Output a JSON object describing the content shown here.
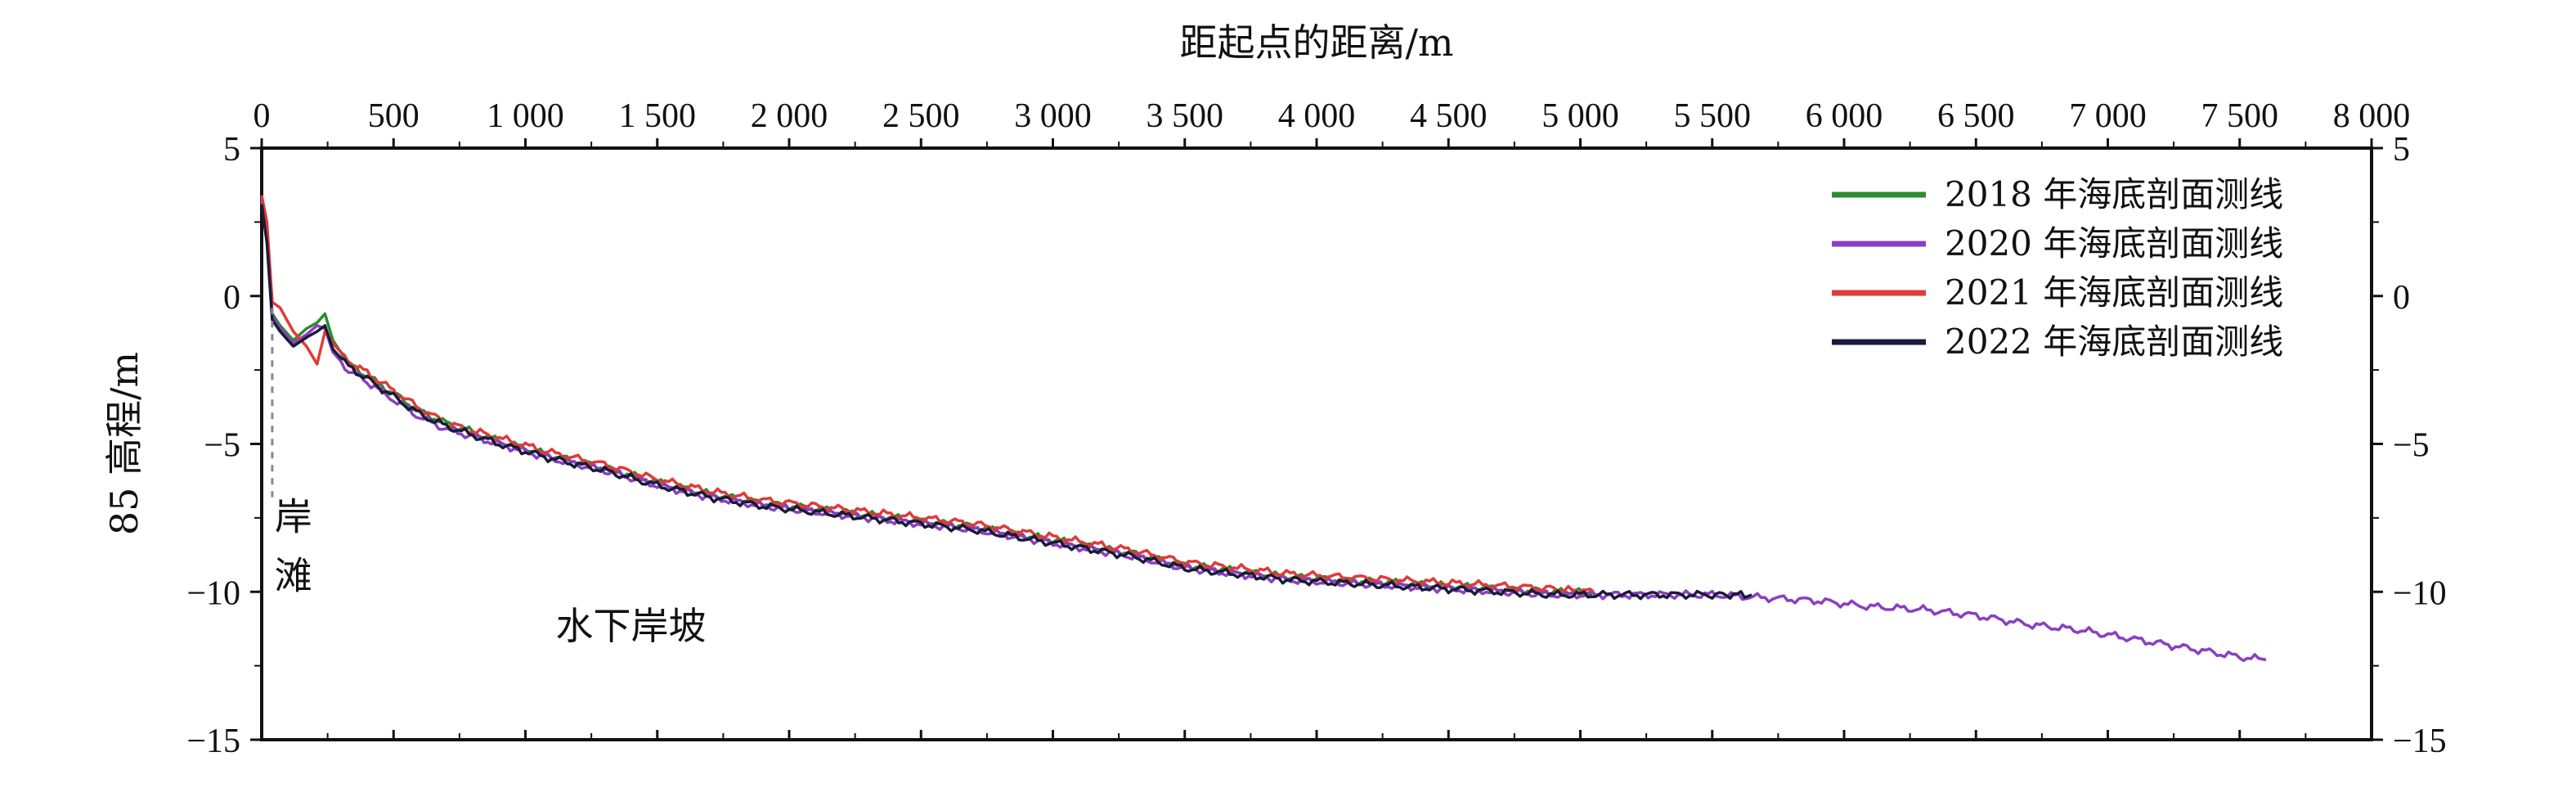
{
  "chart_data": {
    "type": "line",
    "xlabel": "距起点的距离/m",
    "ylabel": "85 高程/m",
    "xlim": [
      0,
      8000
    ],
    "ylim": [
      -15,
      5
    ],
    "x_ticks": [
      0,
      500,
      1000,
      1500,
      2000,
      2500,
      3000,
      3500,
      4000,
      4500,
      5000,
      5500,
      6000,
      6500,
      7000,
      7500,
      8000
    ],
    "x_tick_labels": [
      "0",
      "500",
      "1 000",
      "1 500",
      "2 000",
      "2 500",
      "3 000",
      "3 500",
      "4 000",
      "4 500",
      "5 000",
      "5 500",
      "6 000",
      "6 500",
      "7 000",
      "7 500",
      "8 000"
    ],
    "y_ticks": [
      5,
      0,
      -5,
      -10,
      -15
    ],
    "y_tick_labels": [
      "5",
      "0",
      "−5",
      "−10",
      "−15"
    ],
    "grid": false,
    "legend_position": "top-right",
    "annotations": [
      {
        "text": "岸",
        "x": 120,
        "y": -7.9
      },
      {
        "text": "滩",
        "x": 120,
        "y": -9.9
      },
      {
        "text": "水下岸坡",
        "x": 1400,
        "y": -11.6
      }
    ],
    "boundary_x": 40,
    "series": [
      {
        "name": "2018 年海底剖面测线",
        "color": "#2e8b2e",
        "x": [
          0,
          20,
          40,
          70,
          120,
          170,
          210,
          240,
          270,
          330,
          400,
          500,
          600,
          700,
          900,
          1100,
          1300,
          1500,
          1700,
          1900,
          2100,
          2300,
          2500,
          2700,
          2900,
          3100,
          3300,
          3500,
          3700,
          3900,
          4100,
          4300,
          4500,
          4700,
          4900,
          5050
        ],
        "y": [
          3.2,
          2.0,
          -0.6,
          -1.0,
          -1.5,
          -1.1,
          -0.9,
          -0.6,
          -1.5,
          -2.3,
          -2.7,
          -3.3,
          -3.9,
          -4.3,
          -4.9,
          -5.4,
          -5.8,
          -6.3,
          -6.7,
          -7.0,
          -7.2,
          -7.4,
          -7.6,
          -7.8,
          -8.1,
          -8.4,
          -8.7,
          -9.1,
          -9.3,
          -9.5,
          -9.6,
          -9.7,
          -9.8,
          -9.9,
          -10.0,
          -10.0
        ]
      },
      {
        "name": "2020 年海底剖面测线",
        "color": "#8a3fc0",
        "x": [
          0,
          20,
          40,
          70,
          120,
          170,
          210,
          240,
          270,
          330,
          400,
          500,
          600,
          700,
          900,
          1100,
          1300,
          1500,
          1700,
          1900,
          2100,
          2300,
          2500,
          2700,
          2900,
          3100,
          3300,
          3500,
          3700,
          3900,
          4100,
          4300,
          4500,
          4700,
          4900,
          5100,
          5300,
          5500,
          5700,
          5900,
          6100,
          6300,
          6500,
          6700,
          6900,
          7100,
          7300,
          7500,
          7600
        ],
        "y": [
          3.3,
          2.2,
          -0.7,
          -1.1,
          -1.6,
          -1.3,
          -1.0,
          -1.1,
          -1.9,
          -2.5,
          -2.9,
          -3.5,
          -4.1,
          -4.5,
          -5.0,
          -5.5,
          -5.9,
          -6.4,
          -6.8,
          -7.1,
          -7.3,
          -7.5,
          -7.7,
          -7.9,
          -8.2,
          -8.5,
          -8.8,
          -9.2,
          -9.4,
          -9.6,
          -9.7,
          -9.8,
          -9.9,
          -10.0,
          -10.1,
          -10.1,
          -10.1,
          -10.1,
          -10.2,
          -10.3,
          -10.5,
          -10.6,
          -10.8,
          -11.1,
          -11.3,
          -11.6,
          -11.9,
          -12.2,
          -12.3
        ]
      },
      {
        "name": "2021 年海底剖面测线",
        "color": "#e03a3a",
        "x": [
          0,
          20,
          40,
          70,
          120,
          170,
          210,
          240,
          270,
          330,
          400,
          500,
          600,
          700,
          900,
          1100,
          1300,
          1500,
          1700,
          1900,
          2100,
          2300,
          2500,
          2700,
          2900,
          3100,
          3300,
          3500,
          3700,
          3900,
          4100,
          4300,
          4500,
          4700,
          4900,
          5050
        ],
        "y": [
          3.4,
          2.5,
          -0.2,
          -0.4,
          -1.2,
          -1.7,
          -2.3,
          -1.2,
          -1.6,
          -2.2,
          -2.6,
          -3.2,
          -3.8,
          -4.3,
          -4.8,
          -5.3,
          -5.7,
          -6.2,
          -6.6,
          -6.9,
          -7.1,
          -7.3,
          -7.5,
          -7.7,
          -8.0,
          -8.3,
          -8.6,
          -9.0,
          -9.2,
          -9.4,
          -9.5,
          -9.6,
          -9.7,
          -9.8,
          -9.9,
          -10.0
        ]
      },
      {
        "name": "2022 年海底剖面测线",
        "color": "#1a1a3a",
        "x": [
          0,
          20,
          40,
          70,
          120,
          170,
          210,
          240,
          270,
          330,
          400,
          500,
          600,
          700,
          900,
          1100,
          1300,
          1500,
          1700,
          1900,
          2100,
          2300,
          2500,
          2700,
          2900,
          3100,
          3300,
          3500,
          3700,
          3900,
          4100,
          4300,
          4500,
          4700,
          4900,
          5100,
          5300,
          5500,
          5650
        ],
        "y": [
          3.1,
          1.8,
          -0.8,
          -1.2,
          -1.7,
          -1.4,
          -1.2,
          -1.0,
          -1.8,
          -2.4,
          -2.8,
          -3.4,
          -4.0,
          -4.4,
          -5.0,
          -5.5,
          -5.9,
          -6.4,
          -6.8,
          -7.1,
          -7.3,
          -7.5,
          -7.7,
          -7.9,
          -8.2,
          -8.5,
          -8.8,
          -9.2,
          -9.4,
          -9.6,
          -9.7,
          -9.8,
          -9.9,
          -10.0,
          -10.1,
          -10.1,
          -10.1,
          -10.1,
          -10.1
        ]
      }
    ]
  }
}
